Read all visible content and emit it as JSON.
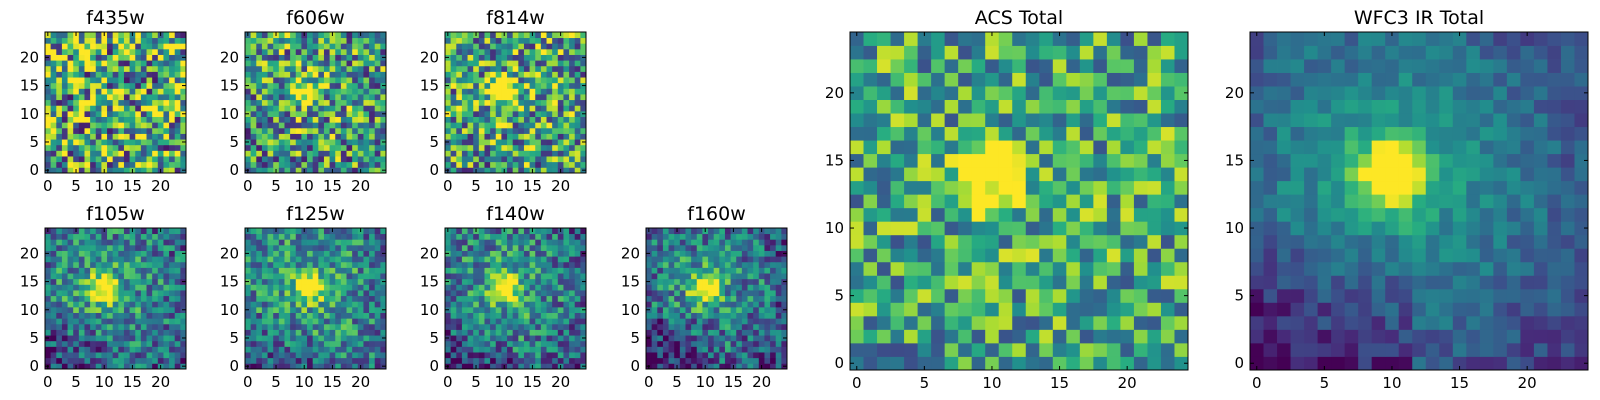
{
  "chart_data": [
    {
      "type": "heatmap",
      "title": "f435w",
      "grid_size": 25,
      "xlim": [
        0,
        24
      ],
      "ylim": [
        0,
        24
      ],
      "xticks": [
        "0",
        "5",
        "10",
        "15",
        "20"
      ],
      "yticks": [
        "0",
        "5",
        "10",
        "15",
        "20"
      ],
      "peak": [
        10,
        14
      ],
      "peak_strength": 0.05,
      "noise": 0.55,
      "falloff": 0.0,
      "seed": 11
    },
    {
      "type": "heatmap",
      "title": "f606w",
      "grid_size": 25,
      "xlim": [
        0,
        24
      ],
      "ylim": [
        0,
        24
      ],
      "xticks": [
        "0",
        "5",
        "10",
        "15",
        "20"
      ],
      "yticks": [
        "0",
        "5",
        "10",
        "15",
        "20"
      ],
      "peak": [
        10,
        14
      ],
      "peak_strength": 0.65,
      "noise": 0.45,
      "falloff": 0.15,
      "seed": 23
    },
    {
      "type": "heatmap",
      "title": "f814w",
      "grid_size": 25,
      "xlim": [
        0,
        24
      ],
      "ylim": [
        0,
        24
      ],
      "xticks": [
        "0",
        "5",
        "10",
        "15",
        "20"
      ],
      "yticks": [
        "0",
        "5",
        "10",
        "15",
        "20"
      ],
      "peak": [
        10,
        14
      ],
      "peak_strength": 0.7,
      "noise": 0.45,
      "falloff": 0.1,
      "seed": 37
    },
    {
      "type": "heatmap",
      "title": "f105w",
      "grid_size": 25,
      "xlim": [
        0,
        24
      ],
      "ylim": [
        0,
        24
      ],
      "xticks": [
        "0",
        "5",
        "10",
        "15",
        "20"
      ],
      "yticks": [
        "0",
        "5",
        "10",
        "15",
        "20"
      ],
      "peak": [
        10,
        14
      ],
      "peak_strength": 0.75,
      "noise": 0.3,
      "falloff": 0.45,
      "seed": 41
    },
    {
      "type": "heatmap",
      "title": "f125w",
      "grid_size": 25,
      "xlim": [
        0,
        24
      ],
      "ylim": [
        0,
        24
      ],
      "xticks": [
        "0",
        "5",
        "10",
        "15",
        "20"
      ],
      "yticks": [
        "0",
        "5",
        "10",
        "15",
        "20"
      ],
      "peak": [
        11,
        14
      ],
      "peak_strength": 0.7,
      "noise": 0.3,
      "falloff": 0.35,
      "seed": 53
    },
    {
      "type": "heatmap",
      "title": "f140w",
      "grid_size": 25,
      "xlim": [
        0,
        24
      ],
      "ylim": [
        0,
        24
      ],
      "xticks": [
        "0",
        "5",
        "10",
        "15",
        "20"
      ],
      "yticks": [
        "0",
        "5",
        "10",
        "15",
        "20"
      ],
      "peak": [
        10,
        14
      ],
      "peak_strength": 0.75,
      "noise": 0.3,
      "falloff": 0.45,
      "seed": 67
    },
    {
      "type": "heatmap",
      "title": "f160w",
      "grid_size": 25,
      "xlim": [
        0,
        24
      ],
      "ylim": [
        0,
        24
      ],
      "xticks": [
        "0",
        "5",
        "10",
        "15",
        "20"
      ],
      "yticks": [
        "0",
        "5",
        "10",
        "15",
        "20"
      ],
      "peak": [
        10,
        14
      ],
      "peak_strength": 0.7,
      "noise": 0.3,
      "falloff": 0.55,
      "seed": 79
    },
    {
      "type": "heatmap",
      "title": "ACS Total",
      "grid_size": 25,
      "xlim": [
        0,
        24
      ],
      "ylim": [
        0,
        24
      ],
      "xticks": [
        "0",
        "5",
        "10",
        "15",
        "20"
      ],
      "yticks": [
        "0",
        "5",
        "10",
        "15",
        "20"
      ],
      "peak": [
        10,
        14
      ],
      "peak_strength": 0.75,
      "noise": 0.35,
      "falloff": 0.05,
      "seed": 97
    },
    {
      "type": "heatmap",
      "title": "WFC3 IR Total",
      "grid_size": 25,
      "xlim": [
        0,
        24
      ],
      "ylim": [
        0,
        24
      ],
      "xticks": [
        "0",
        "5",
        "10",
        "15",
        "20"
      ],
      "yticks": [
        "0",
        "5",
        "10",
        "15",
        "20"
      ],
      "peak": [
        10,
        14
      ],
      "peak_strength": 0.85,
      "noise": 0.12,
      "falloff": 0.6,
      "seed": 113
    }
  ]
}
